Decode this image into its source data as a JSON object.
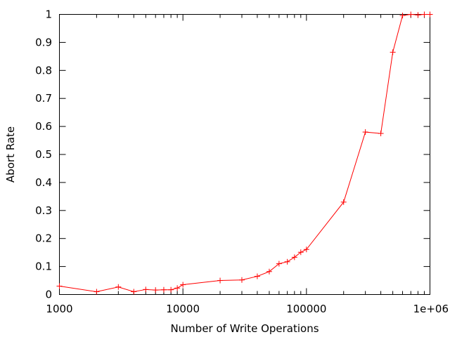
{
  "colors": {
    "series": "#ff0000",
    "axis": "#000000",
    "background": "#ffffff"
  },
  "chart_data": {
    "type": "line",
    "xlabel": "Number of Write Operations",
    "ylabel": "Abort Rate",
    "xscale": "log",
    "xlim": [
      1000,
      1000000
    ],
    "ylim": [
      0,
      1
    ],
    "grid": false,
    "legend": "none",
    "x_ticks": [
      {
        "value": 1000,
        "label": "1000"
      },
      {
        "value": 10000,
        "label": "10000"
      },
      {
        "value": 100000,
        "label": "100000"
      },
      {
        "value": 1000000,
        "label": "1e+06"
      }
    ],
    "y_ticks": [
      {
        "value": 0,
        "label": "0"
      },
      {
        "value": 0.1,
        "label": "0.1"
      },
      {
        "value": 0.2,
        "label": "0.2"
      },
      {
        "value": 0.3,
        "label": "0.3"
      },
      {
        "value": 0.4,
        "label": "0.4"
      },
      {
        "value": 0.5,
        "label": "0.5"
      },
      {
        "value": 0.6,
        "label": "0.6"
      },
      {
        "value": 0.7,
        "label": "0.7"
      },
      {
        "value": 0.8,
        "label": "0.8"
      },
      {
        "value": 0.9,
        "label": "0.9"
      },
      {
        "value": 1,
        "label": "1"
      }
    ],
    "series": [
      {
        "marker": "plus",
        "x": [
          1000,
          2000,
          3000,
          4000,
          5000,
          6000,
          7000,
          8000,
          9000,
          10000,
          20000,
          30000,
          40000,
          50000,
          60000,
          70000,
          80000,
          90000,
          100000,
          200000,
          300000,
          400000,
          500000,
          600000,
          700000,
          800000,
          900000,
          1000000
        ],
        "y": [
          0.03,
          0.01,
          0.027,
          0.01,
          0.018,
          0.016,
          0.017,
          0.017,
          0.023,
          0.035,
          0.05,
          0.052,
          0.065,
          0.082,
          0.11,
          0.117,
          0.133,
          0.151,
          0.161,
          0.33,
          0.58,
          0.575,
          0.865,
          0.996,
          1.0,
          0.998,
          1.0,
          1.0
        ]
      }
    ]
  }
}
